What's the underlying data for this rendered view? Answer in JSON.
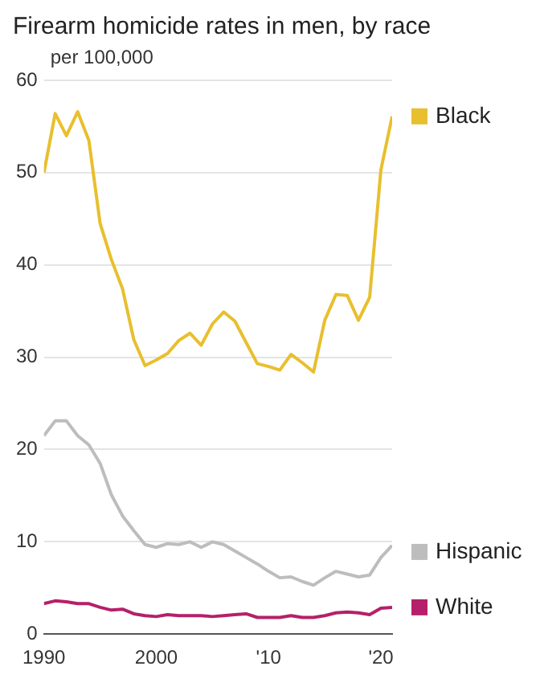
{
  "chart_data": {
    "type": "line",
    "title": "Firearm homicide rates in men, by race",
    "x": [
      1990,
      1991,
      1992,
      1993,
      1994,
      1995,
      1996,
      1997,
      1998,
      1999,
      2000,
      2001,
      2002,
      2003,
      2004,
      2005,
      2006,
      2007,
      2008,
      2009,
      2010,
      2011,
      2012,
      2013,
      2014,
      2015,
      2016,
      2017,
      2018,
      2019,
      2020,
      2021
    ],
    "series": [
      {
        "name": "Black",
        "color": "#e8bf2e",
        "values": [
          50,
          56.4,
          54.0,
          56.6,
          53.5,
          44.5,
          40.6,
          37.4,
          31.9,
          29.1,
          29.7,
          30.4,
          31.8,
          32.6,
          31.3,
          33.6,
          34.9,
          33.9,
          31.6,
          29.3,
          29.0,
          28.6,
          30.3,
          29.4,
          28.4,
          34.0,
          36.8,
          36.7,
          34.0,
          36.5,
          50.3,
          56.1
        ]
      },
      {
        "name": "Hispanic",
        "color": "#bdbdbd",
        "values": [
          21.5,
          23.1,
          23.1,
          21.5,
          20.5,
          18.5,
          15.1,
          12.8,
          11.2,
          9.7,
          9.4,
          9.8,
          9.7,
          10.0,
          9.4,
          10.0,
          9.7,
          9.0,
          8.3,
          7.6,
          6.8,
          6.1,
          6.2,
          5.7,
          5.3,
          6.1,
          6.8,
          6.5,
          6.2,
          6.4,
          8.3,
          9.6
        ]
      },
      {
        "name": "White",
        "color": "#b5206a",
        "values": [
          3.3,
          3.6,
          3.5,
          3.3,
          3.3,
          2.9,
          2.6,
          2.7,
          2.2,
          2.0,
          1.9,
          2.1,
          2.0,
          2.0,
          2.0,
          1.9,
          2.0,
          2.1,
          2.2,
          1.8,
          1.8,
          1.8,
          2.0,
          1.8,
          1.8,
          2.0,
          2.3,
          2.4,
          2.3,
          2.1,
          2.8,
          2.9
        ]
      }
    ],
    "xlim": [
      1990,
      2021
    ],
    "xticks": [
      1990,
      2000,
      {
        "value": 2010,
        "label": "'10"
      },
      {
        "value": 2020,
        "label": "'20"
      }
    ],
    "ylim": [
      0,
      60
    ],
    "yticks": [
      0,
      10,
      20,
      30,
      40,
      50,
      60
    ],
    "annotations": [
      "per 100,000"
    ],
    "grid": "y",
    "legend": "right",
    "marker": "none",
    "line_style": "solid"
  }
}
